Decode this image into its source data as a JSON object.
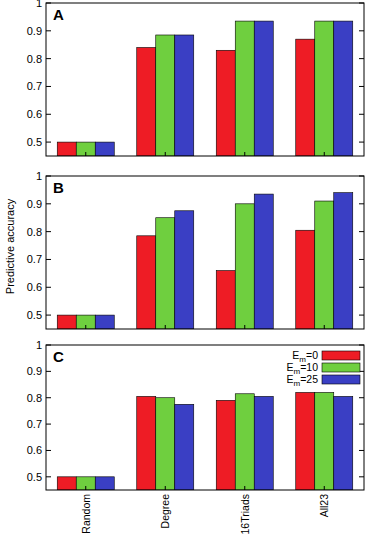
{
  "chart_data": [
    {
      "type": "bar",
      "title": "A",
      "categories": [
        "Random",
        "Degree",
        "16Triads",
        "All23"
      ],
      "series": [
        {
          "name": "Em=0",
          "color": "#ee1c25",
          "values": [
            0.5,
            0.84,
            0.83,
            0.87
          ]
        },
        {
          "name": "Em=10",
          "color": "#6fcf3f",
          "values": [
            0.5,
            0.885,
            0.935,
            0.935
          ]
        },
        {
          "name": "Em=25",
          "color": "#3a3fc4",
          "values": [
            0.5,
            0.885,
            0.935,
            0.935
          ]
        }
      ],
      "ylim": [
        0.45,
        1
      ],
      "yticks": [
        0.5,
        0.6,
        0.7,
        0.8,
        0.9,
        1
      ],
      "grid": false,
      "tick_labels": "y"
    },
    {
      "type": "bar",
      "title": "B",
      "y_label": "Predictive accuracy",
      "categories": [
        "Random",
        "Degree",
        "16Triads",
        "All23"
      ],
      "series": [
        {
          "name": "Em=0",
          "color": "#ee1c25",
          "values": [
            0.5,
            0.785,
            0.66,
            0.805
          ]
        },
        {
          "name": "Em=10",
          "color": "#6fcf3f",
          "values": [
            0.5,
            0.85,
            0.9,
            0.91
          ]
        },
        {
          "name": "Em=25",
          "color": "#3a3fc4",
          "values": [
            0.5,
            0.875,
            0.935,
            0.94
          ]
        }
      ],
      "ylim": [
        0.45,
        1
      ],
      "yticks": [
        0.5,
        0.6,
        0.7,
        0.8,
        0.9,
        1
      ],
      "grid": false,
      "tick_labels": "y"
    },
    {
      "type": "bar",
      "title": "C",
      "categories": [
        "Random",
        "Degree",
        "16Triads",
        "All23"
      ],
      "series": [
        {
          "name": "Em=0",
          "color": "#ee1c25",
          "values": [
            0.5,
            0.805,
            0.79,
            0.82
          ]
        },
        {
          "name": "Em=10",
          "color": "#6fcf3f",
          "values": [
            0.5,
            0.8,
            0.815,
            0.82
          ]
        },
        {
          "name": "Em=25",
          "color": "#3a3fc4",
          "values": [
            0.5,
            0.775,
            0.805,
            0.805
          ]
        }
      ],
      "ylim": [
        0.45,
        1
      ],
      "yticks": [
        0.5,
        0.6,
        0.7,
        0.8,
        0.9,
        1
      ],
      "grid": false,
      "tick_labels": true,
      "legend": "top-right"
    }
  ]
}
